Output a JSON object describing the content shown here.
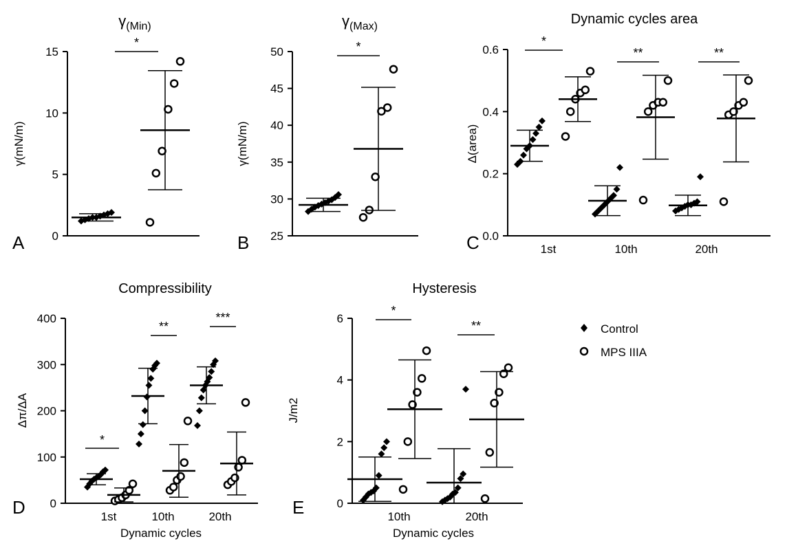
{
  "legend": {
    "items": [
      {
        "label": "Control",
        "marker": "diamond"
      },
      {
        "label": "MPS IIIA",
        "marker": "circle"
      }
    ]
  },
  "chart_data": [
    {
      "type": "scatter",
      "panel_letter": "A",
      "title": "γ",
      "title_sub": "(Min)",
      "ylabel": "γ(mN/m)",
      "xlabel": "",
      "ylim": [
        0,
        15
      ],
      "yticks": [
        "0",
        "5",
        "10",
        "15"
      ],
      "categories": [
        ""
      ],
      "series": [
        {
          "name": "Control",
          "values": [
            [
              1.2,
              1.3,
              1.4,
              1.5,
              1.5,
              1.6,
              1.7,
              1.8,
              1.9
            ]
          ],
          "mean": [
            1.5
          ],
          "sd": [
            0.3
          ]
        },
        {
          "name": "MPS IIIA",
          "values": [
            [
              1.1,
              5.1,
              6.9,
              10.3,
              12.4,
              14.2
            ]
          ],
          "mean": [
            8.6
          ],
          "sd": [
            4.85
          ]
        }
      ],
      "significance": [
        "*"
      ]
    },
    {
      "type": "scatter",
      "panel_letter": "B",
      "title": "γ",
      "title_sub": "(Max)",
      "ylabel": "γ(mN/m)",
      "xlabel": "",
      "ylim": [
        25,
        50
      ],
      "yticks": [
        "25",
        "30",
        "35",
        "40",
        "45",
        "50"
      ],
      "categories": [
        ""
      ],
      "series": [
        {
          "name": "Control",
          "values": [
            [
              28.3,
              28.6,
              28.9,
              29.1,
              29.3,
              29.5,
              29.7,
              29.9,
              30.2,
              30.6
            ]
          ],
          "mean": [
            29.2
          ],
          "sd": [
            0.9
          ]
        },
        {
          "name": "MPS IIIA",
          "values": [
            [
              27.5,
              28.5,
              33.0,
              41.9,
              42.4,
              47.6
            ]
          ],
          "mean": [
            36.8
          ],
          "sd": [
            8.35
          ]
        }
      ],
      "significance": [
        "*"
      ]
    },
    {
      "type": "scatter",
      "panel_letter": "C",
      "title": "Dynamic cycles area",
      "ylabel": "Δ(area)",
      "xlabel": "",
      "ylim": [
        0,
        0.6
      ],
      "yticks": [
        "0.0",
        "0.2",
        "0.4",
        "0.6"
      ],
      "categories": [
        "1st",
        "10th",
        "20th"
      ],
      "series": [
        {
          "name": "Control",
          "values": [
            [
              0.23,
              0.24,
              0.26,
              0.28,
              0.29,
              0.31,
              0.33,
              0.35,
              0.37
            ],
            [
              0.07,
              0.08,
              0.09,
              0.1,
              0.11,
              0.12,
              0.13,
              0.15,
              0.22
            ],
            [
              0.08,
              0.085,
              0.09,
              0.095,
              0.1,
              0.1,
              0.105,
              0.11,
              0.19
            ]
          ],
          "mean": [
            0.29,
            0.113,
            0.098
          ],
          "sd": [
            0.05,
            0.048,
            0.033
          ]
        },
        {
          "name": "MPS IIIA",
          "values": [
            [
              0.32,
              0.4,
              0.44,
              0.46,
              0.47,
              0.53
            ],
            [
              0.115,
              0.4,
              0.42,
              0.43,
              0.43,
              0.5
            ],
            [
              0.11,
              0.39,
              0.4,
              0.42,
              0.43,
              0.5
            ]
          ],
          "mean": [
            0.44,
            0.382,
            0.378
          ],
          "sd": [
            0.072,
            0.135,
            0.14
          ]
        }
      ],
      "significance": [
        "*",
        "**",
        "**"
      ]
    },
    {
      "type": "scatter",
      "panel_letter": "D",
      "title": "Compressibility",
      "ylabel": "Δπ/ΔA",
      "xlabel": "Dynamic cycles",
      "ylim": [
        0,
        400
      ],
      "yticks": [
        "0",
        "100",
        "200",
        "300",
        "400"
      ],
      "categories": [
        "1st",
        "10th",
        "20th"
      ],
      "series": [
        {
          "name": "Control",
          "values": [
            [
              35,
              42,
              48,
              52,
              55,
              58,
              62,
              68,
              72
            ],
            [
              128,
              150,
              170,
              200,
              230,
              255,
              270,
              290,
              298,
              303
            ],
            [
              168,
              200,
              228,
              245,
              255,
              263,
              272,
              285,
              300,
              308
            ]
          ],
          "mean": [
            52,
            232,
            255
          ],
          "sd": [
            12,
            60,
            40
          ]
        },
        {
          "name": "MPS IIIA",
          "values": [
            [
              5,
              8,
              12,
              18,
              28,
              42
            ],
            [
              28,
              35,
              50,
              58,
              88,
              178
            ],
            [
              40,
              47,
              55,
              78,
              93,
              218
            ]
          ],
          "mean": [
            18,
            70,
            86
          ],
          "sd": [
            15,
            57,
            68
          ]
        }
      ],
      "significance": [
        "*",
        "**",
        "***"
      ]
    },
    {
      "type": "scatter",
      "panel_letter": "E",
      "title": "Hysteresis",
      "ylabel": "J/m2",
      "xlabel": "Dynamic cycles",
      "ylim": [
        0,
        6
      ],
      "yticks": [
        "0",
        "2",
        "4",
        "6"
      ],
      "categories": [
        "10th",
        "20th"
      ],
      "series": [
        {
          "name": "Control",
          "values": [
            [
              0.1,
              0.2,
              0.3,
              0.35,
              0.4,
              0.5,
              0.9,
              1.6,
              1.8,
              2.0
            ],
            [
              0.05,
              0.1,
              0.15,
              0.2,
              0.3,
              0.35,
              0.5,
              0.8,
              0.95,
              3.7
            ]
          ],
          "mean": [
            0.78,
            0.67
          ],
          "sd": [
            0.72,
            1.1
          ]
        },
        {
          "name": "MPS IIIA",
          "values": [
            [
              0.45,
              2.0,
              3.2,
              3.6,
              4.05,
              4.95
            ],
            [
              0.15,
              1.65,
              3.25,
              3.6,
              4.2,
              4.4
            ]
          ],
          "mean": [
            3.05,
            2.72
          ],
          "sd": [
            1.6,
            1.55
          ]
        }
      ],
      "significance": [
        "*",
        "**"
      ]
    }
  ]
}
